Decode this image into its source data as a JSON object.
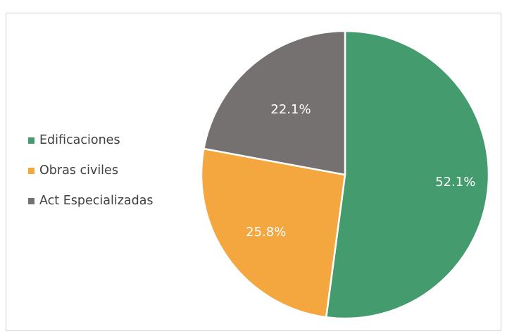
{
  "colors": {
    "top_edge_text": "#2a2ad6",
    "edificaciones": "#449b6d",
    "obras_civiles": "#f4a63f",
    "act_especializadas": "#767171"
  },
  "chart_data": {
    "type": "pie",
    "title": "",
    "legend_position": "left",
    "slices": [
      {
        "name": "Edificaciones",
        "value": 52.1,
        "label": "52.1%",
        "color": "#449b6d"
      },
      {
        "name": "Obras civiles",
        "value": 25.8,
        "label": "25.8%",
        "color": "#f4a63f"
      },
      {
        "name": "Act Especializadas",
        "value": 22.1,
        "label": "22.1%",
        "color": "#767171"
      }
    ]
  }
}
